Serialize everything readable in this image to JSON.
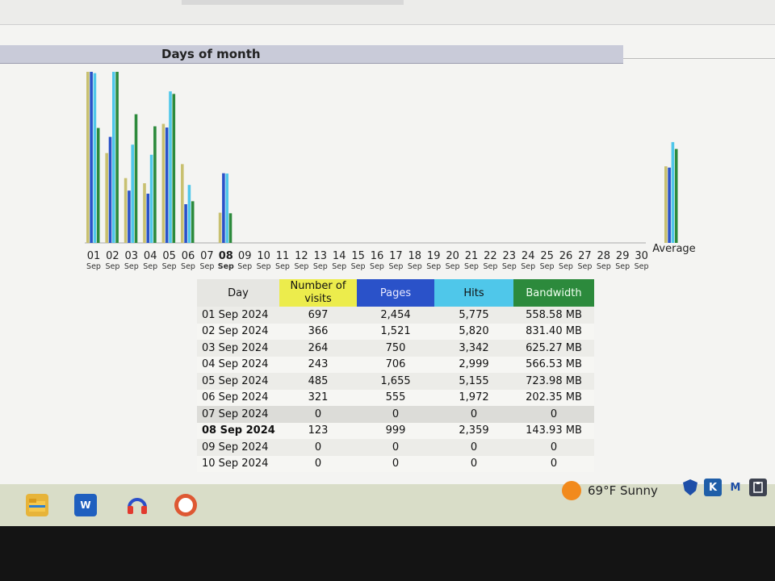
{
  "section_title": "Days of month",
  "colors": {
    "visits": "#c8c070",
    "pages": "#2a52c9",
    "hits": "#4fc7ea",
    "bandwidth": "#2c8a3c"
  },
  "chart_data": {
    "type": "bar",
    "title": "Days of month",
    "categories": [
      "01",
      "02",
      "03",
      "04",
      "05",
      "06",
      "07",
      "08",
      "09",
      "10",
      "11",
      "12",
      "13",
      "14",
      "15",
      "16",
      "17",
      "18",
      "19",
      "20",
      "21",
      "22",
      "23",
      "24",
      "25",
      "26",
      "27",
      "28",
      "29",
      "30",
      "Average"
    ],
    "category_sublabels": [
      "Sep",
      "Sep",
      "Sep",
      "Sep",
      "Sep",
      "Sep",
      "Sep",
      "Sep",
      "Sep",
      "Sep",
      "Sep",
      "Sep",
      "Sep",
      "Sep",
      "Sep",
      "Sep",
      "Sep",
      "Sep",
      "Sep",
      "Sep",
      "Sep",
      "Sep",
      "Sep",
      "Sep",
      "Sep",
      "Sep",
      "Sep",
      "Sep",
      "Sep",
      "Sep",
      ""
    ],
    "series": [
      {
        "name": "Number of visits",
        "color": "#c8c070",
        "values": [
          697,
          366,
          264,
          243,
          485,
          321,
          0,
          123,
          0,
          0,
          0,
          0,
          0,
          0,
          0,
          0,
          0,
          0,
          0,
          0,
          0,
          0,
          0,
          0,
          0,
          0,
          0,
          0,
          0,
          0,
          312
        ]
      },
      {
        "name": "Pages",
        "color": "#2a52c9",
        "values": [
          2454,
          1521,
          750,
          706,
          1655,
          555,
          0,
          999,
          0,
          0,
          0,
          0,
          0,
          0,
          0,
          0,
          0,
          0,
          0,
          0,
          0,
          0,
          0,
          0,
          0,
          0,
          0,
          0,
          0,
          0,
          1080
        ]
      },
      {
        "name": "Hits",
        "color": "#4fc7ea",
        "values": [
          5775,
          5820,
          3342,
          2999,
          5155,
          1972,
          0,
          2359,
          0,
          0,
          0,
          0,
          0,
          0,
          0,
          0,
          0,
          0,
          0,
          0,
          0,
          0,
          0,
          0,
          0,
          0,
          0,
          0,
          0,
          0,
          3428
        ]
      },
      {
        "name": "Bandwidth",
        "color": "#2c8a3c",
        "values": [
          558.58,
          831.4,
          625.27,
          566.53,
          723.98,
          202.35,
          0,
          143.93,
          0,
          0,
          0,
          0,
          0,
          0,
          0,
          0,
          0,
          0,
          0,
          0,
          0,
          0,
          0,
          0,
          0,
          0,
          0,
          0,
          0,
          0,
          456.5
        ]
      }
    ]
  },
  "table": {
    "headers": {
      "day": "Day",
      "visits": "Number of visits",
      "pages": "Pages",
      "hits": "Hits",
      "bandwidth": "Bandwidth"
    },
    "rows": [
      {
        "day": "01 Sep 2024",
        "visits": "697",
        "pages": "2,454",
        "hits": "5,775",
        "bandwidth": "558.58 MB"
      },
      {
        "day": "02 Sep 2024",
        "visits": "366",
        "pages": "1,521",
        "hits": "5,820",
        "bandwidth": "831.40 MB"
      },
      {
        "day": "03 Sep 2024",
        "visits": "264",
        "pages": "750",
        "hits": "3,342",
        "bandwidth": "625.27 MB"
      },
      {
        "day": "04 Sep 2024",
        "visits": "243",
        "pages": "706",
        "hits": "2,999",
        "bandwidth": "566.53 MB"
      },
      {
        "day": "05 Sep 2024",
        "visits": "485",
        "pages": "1,655",
        "hits": "5,155",
        "bandwidth": "723.98 MB"
      },
      {
        "day": "06 Sep 2024",
        "visits": "321",
        "pages": "555",
        "hits": "1,972",
        "bandwidth": "202.35 MB"
      },
      {
        "day": "07 Sep 2024",
        "visits": "0",
        "pages": "0",
        "hits": "0",
        "bandwidth": "0"
      },
      {
        "day": "08 Sep 2024",
        "visits": "123",
        "pages": "999",
        "hits": "2,359",
        "bandwidth": "143.93 MB"
      },
      {
        "day": "09 Sep 2024",
        "visits": "0",
        "pages": "0",
        "hits": "0",
        "bandwidth": "0"
      },
      {
        "day": "10 Sep 2024",
        "visits": "0",
        "pages": "0",
        "hits": "0",
        "bandwidth": "0"
      }
    ]
  },
  "taskbar": {
    "icons": [
      "file-explorer-icon",
      "word-icon",
      "audio-app-icon",
      "duckduckgo-icon"
    ],
    "word_label": "W",
    "weather_text": "69°F  Sunny",
    "tray": [
      "shield-icon",
      "k-app-icon",
      "m-app-icon",
      "clipboard-icon"
    ],
    "tray_k_label": "K",
    "tray_m_label": "M"
  }
}
